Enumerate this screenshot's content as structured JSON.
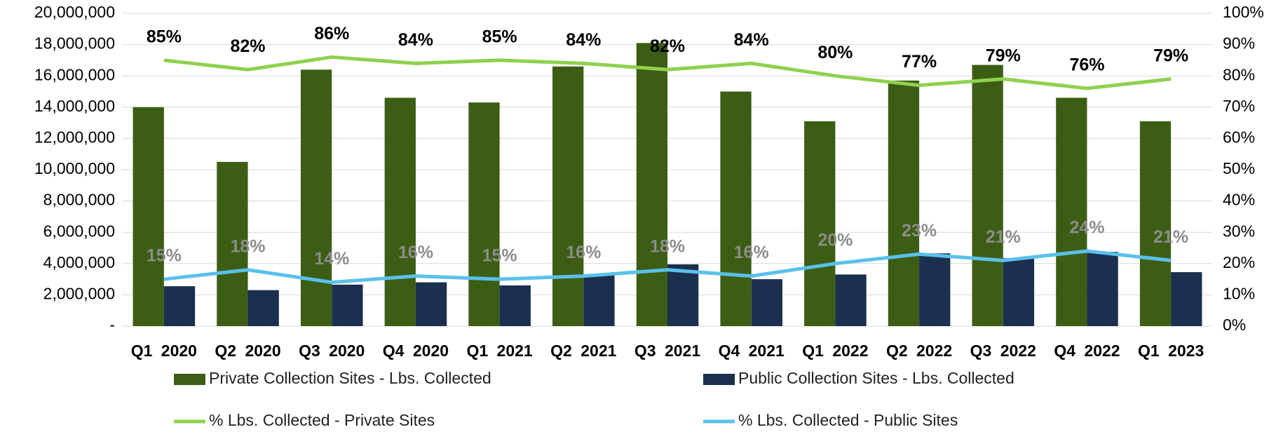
{
  "chart_data": {
    "type": "bar",
    "categories": [
      "Q1 2020",
      "Q2 2020",
      "Q3 2020",
      "Q4 2020",
      "Q1 2021",
      "Q2 2021",
      "Q3 2021",
      "Q4 2021",
      "Q1 2022",
      "Q2 2022",
      "Q3 2022",
      "Q4 2022",
      "Q1 2023"
    ],
    "series": [
      {
        "name": "Private Collection Sites - Lbs. Collected",
        "type": "bar",
        "color": "#3c5e14",
        "values": [
          14000000,
          10500000,
          16400000,
          14600000,
          14300000,
          16600000,
          18100000,
          15000000,
          13100000,
          15700000,
          16700000,
          14600000,
          13100000
        ]
      },
      {
        "name": "Public Collection Sites - Lbs. Collected",
        "type": "bar",
        "color": "#1b2f4e",
        "values": [
          2550000,
          2300000,
          2650000,
          2800000,
          2600000,
          3300000,
          3950000,
          3000000,
          3300000,
          4650000,
          4350000,
          4750000,
          3450000
        ]
      },
      {
        "name": "% Lbs. Collected - Private Sites",
        "type": "line",
        "axis": "y2",
        "color": "#8fd14f",
        "label_color": "#000000",
        "values": [
          85,
          82,
          86,
          84,
          85,
          84,
          82,
          84,
          80,
          77,
          79,
          76,
          79
        ],
        "value_labels": [
          "85%",
          "82%",
          "86%",
          "84%",
          "85%",
          "84%",
          "82%",
          "84%",
          "80%",
          "77%",
          "79%",
          "76%",
          "79%"
        ]
      },
      {
        "name": "% Lbs. Collected - Public Sites",
        "type": "line",
        "axis": "y2",
        "color": "#5bc0eb",
        "label_color": "#8c8c8c",
        "values": [
          15,
          18,
          14,
          16,
          15,
          16,
          18,
          16,
          20,
          23,
          21,
          24,
          21
        ],
        "value_labels": [
          "15%",
          "18%",
          "14%",
          "16%",
          "15%",
          "16%",
          "18%",
          "16%",
          "20%",
          "23%",
          "21%",
          "24%",
          "21%"
        ]
      }
    ],
    "ylim": [
      0,
      20000000
    ],
    "yticks": [
      {
        "value": 0,
        "label": "-"
      },
      {
        "value": 2000000,
        "label": "2,000,000"
      },
      {
        "value": 4000000,
        "label": "4,000,000"
      },
      {
        "value": 6000000,
        "label": "6,000,000"
      },
      {
        "value": 8000000,
        "label": "8,000,000"
      },
      {
        "value": 10000000,
        "label": "10,000,000"
      },
      {
        "value": 12000000,
        "label": "12,000,000"
      },
      {
        "value": 14000000,
        "label": "14,000,000"
      },
      {
        "value": 16000000,
        "label": "16,000,000"
      },
      {
        "value": 18000000,
        "label": "18,000,000"
      },
      {
        "value": 20000000,
        "label": "20,000,000"
      }
    ],
    "y2lim": [
      0,
      100
    ],
    "y2ticks": [
      {
        "value": 0,
        "label": "0%"
      },
      {
        "value": 10,
        "label": "10%"
      },
      {
        "value": 20,
        "label": "20%"
      },
      {
        "value": 30,
        "label": "30%"
      },
      {
        "value": 40,
        "label": "40%"
      },
      {
        "value": 50,
        "label": "50%"
      },
      {
        "value": 60,
        "label": "60%"
      },
      {
        "value": 70,
        "label": "70%"
      },
      {
        "value": 80,
        "label": "80%"
      },
      {
        "value": 90,
        "label": "90%"
      },
      {
        "value": 100,
        "label": "100%"
      }
    ],
    "grid": true
  }
}
